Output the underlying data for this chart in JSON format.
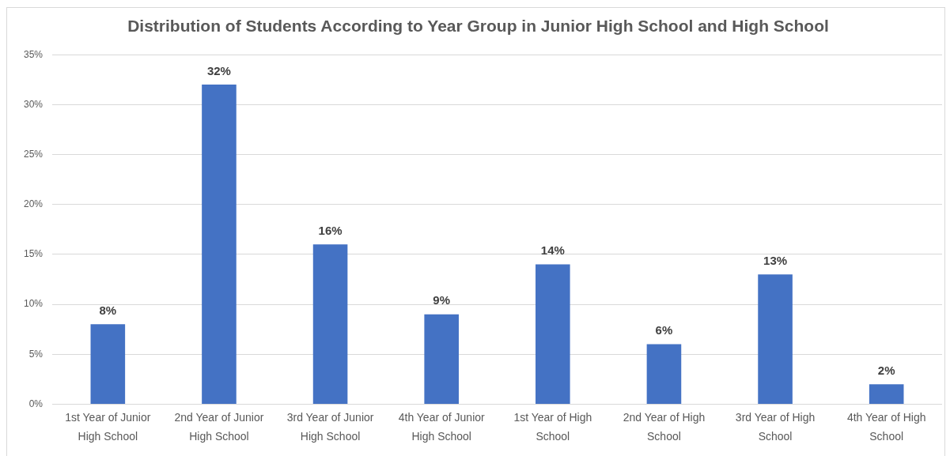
{
  "chart_data": {
    "type": "bar",
    "title": "Distribution of Students According to Year Group in Junior High School and High School",
    "categories": [
      "1st Year of Junior High School",
      "2nd Year of Junior High School",
      "3rd Year of Junior High School",
      "4th Year of Junior High School",
      "1st Year of High School",
      "2nd Year of High School",
      "3rd Year of High School",
      "4th Year of High School"
    ],
    "values": [
      8,
      32,
      16,
      9,
      14,
      6,
      13,
      2
    ],
    "value_labels": [
      "8%",
      "32%",
      "16%",
      "9%",
      "14%",
      "6%",
      "13%",
      "2%"
    ],
    "color": "#4472c4",
    "ylim": [
      0,
      35
    ],
    "yticks": [
      {
        "value": 0,
        "label": "0%"
      },
      {
        "value": 5,
        "label": "5%"
      },
      {
        "value": 10,
        "label": "10%"
      },
      {
        "value": 15,
        "label": "15%"
      },
      {
        "value": 20,
        "label": "20%"
      },
      {
        "value": 25,
        "label": "25%"
      },
      {
        "value": 30,
        "label": "30%"
      },
      {
        "value": 35,
        "label": "35%"
      }
    ],
    "grid": "y"
  }
}
